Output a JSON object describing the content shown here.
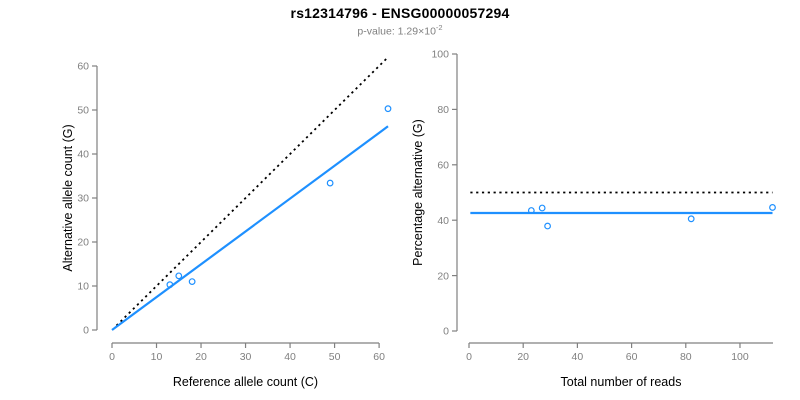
{
  "header": {
    "title": "rs12314796 - ENSG00000057294",
    "subtitle_prefix": "p-value: 1.29×10",
    "subtitle_exponent": "-2"
  },
  "colors": {
    "accent_blue": "#1E90FF",
    "line_black": "#000000",
    "axis_gray": "#808080",
    "tick_label_gray": "#808080",
    "axis_title_black": "#000000"
  },
  "chart_data": [
    {
      "type": "scatter",
      "name": "allele-counts-scatter",
      "title": "",
      "xlabel": "Reference allele count (C)",
      "ylabel": "Alternative allele count (G)",
      "xlim": [
        0,
        62
      ],
      "ylim": [
        0,
        62
      ],
      "xticks": [
        0,
        10,
        20,
        30,
        40,
        50,
        60
      ],
      "yticks": [
        0,
        10,
        20,
        30,
        40,
        50,
        60
      ],
      "grid": false,
      "legend": false,
      "points": [
        [
          13,
          10.3
        ],
        [
          15,
          12.3
        ],
        [
          18,
          11
        ],
        [
          49,
          33.4
        ],
        [
          62,
          50.3
        ]
      ],
      "lines": [
        {
          "name": "identity-line",
          "style": "dotted",
          "color": "#000000",
          "from": [
            1,
            1
          ],
          "to": [
            62,
            62
          ]
        },
        {
          "name": "regression-line",
          "style": "solid",
          "color": "#1E90FF",
          "from": [
            0,
            0
          ],
          "to": [
            62,
            46.3
          ]
        }
      ]
    },
    {
      "type": "scatter",
      "name": "percentage-vs-reads-scatter",
      "title": "",
      "xlabel": "Total number of reads",
      "ylabel": "Percentage alternative (G)",
      "xlim": [
        0,
        112
      ],
      "ylim": [
        0,
        100
      ],
      "xticks": [
        0,
        20,
        40,
        60,
        80,
        100
      ],
      "yticks": [
        0,
        20,
        40,
        60,
        80,
        100
      ],
      "grid": false,
      "legend": false,
      "points": [
        [
          23,
          43.5
        ],
        [
          27,
          44.4
        ],
        [
          29,
          37.9
        ],
        [
          82,
          40.5
        ],
        [
          112,
          44.6
        ]
      ],
      "lines": [
        {
          "name": "expected-50pct-line",
          "style": "dotted",
          "color": "#000000",
          "from": [
            0.5,
            50
          ],
          "to": [
            112,
            50
          ]
        },
        {
          "name": "mean-pct-line",
          "style": "solid",
          "color": "#1E90FF",
          "from": [
            0.5,
            42.6
          ],
          "to": [
            112,
            42.6
          ]
        }
      ]
    }
  ]
}
